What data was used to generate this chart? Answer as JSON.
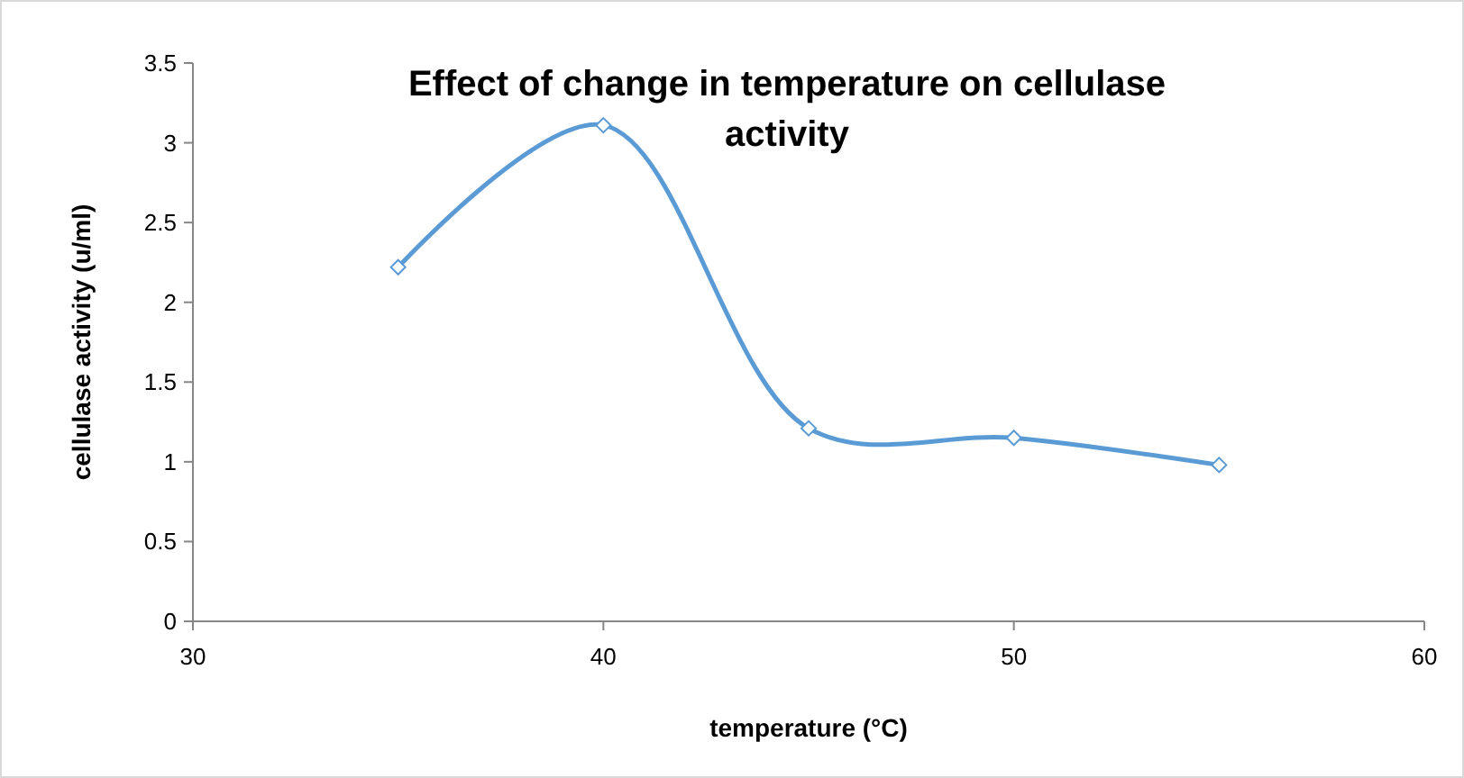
{
  "chart_data": {
    "type": "line",
    "title": "Effect of change in temperature on cellulase activity",
    "xlabel": "temperature (°C)",
    "ylabel": "cellulase activity (u/ml)",
    "x": [
      35,
      40,
      45,
      50,
      55
    ],
    "series": [
      {
        "color": "#5b9bd5",
        "values": [
          2.22,
          3.11,
          1.21,
          1.15,
          0.98
        ]
      }
    ],
    "xlim": [
      30,
      60
    ],
    "xticks": [
      30,
      40,
      50,
      60
    ],
    "ylim": [
      0,
      3.5
    ],
    "yticks": [
      0,
      0.5,
      1,
      1.5,
      2,
      2.5,
      3,
      3.5
    ],
    "marker": "diamond",
    "line_style": "solid"
  }
}
